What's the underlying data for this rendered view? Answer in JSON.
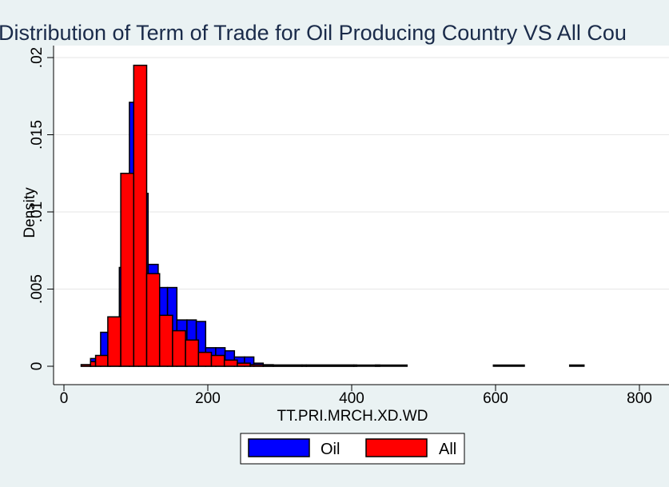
{
  "chart_data": {
    "type": "bar",
    "title": "Distribution of Term of Trade for Oil Producing Country VS All Cou",
    "xlabel": "TT.PRI.MRCH.XD.WD",
    "ylabel": "Density",
    "xlim": [
      0,
      800
    ],
    "ylim": [
      0,
      0.02
    ],
    "xticks": [
      0,
      200,
      400,
      600,
      800
    ],
    "yticks": [
      0,
      0.005,
      0.01,
      0.015,
      0.02
    ],
    "xtick_labels": [
      "0",
      "200",
      "400",
      "600",
      "800"
    ],
    "ytick_labels": [
      "0",
      ".005",
      ".01",
      ".015",
      ".02"
    ],
    "grid": true,
    "legend_position": "bottom",
    "series": [
      {
        "name": "Oil",
        "color": "#0000ff",
        "bins": [
          {
            "x0": 24,
            "x1": 37,
            "y": 0.0001
          },
          {
            "x0": 37,
            "x1": 51,
            "y": 0.0005
          },
          {
            "x0": 51,
            "x1": 64,
            "y": 0.0022
          },
          {
            "x0": 64,
            "x1": 77,
            "y": 0.0032
          },
          {
            "x0": 77,
            "x1": 91,
            "y": 0.0064
          },
          {
            "x0": 91,
            "x1": 104,
            "y": 0.0171
          },
          {
            "x0": 104,
            "x1": 117,
            "y": 0.0112
          },
          {
            "x0": 117,
            "x1": 131,
            "y": 0.0066
          },
          {
            "x0": 131,
            "x1": 144,
            "y": 0.0051
          },
          {
            "x0": 144,
            "x1": 157,
            "y": 0.0051
          },
          {
            "x0": 157,
            "x1": 171,
            "y": 0.003
          },
          {
            "x0": 171,
            "x1": 184,
            "y": 0.003
          },
          {
            "x0": 184,
            "x1": 197,
            "y": 0.0029
          },
          {
            "x0": 197,
            "x1": 211,
            "y": 0.0012
          },
          {
            "x0": 211,
            "x1": 224,
            "y": 0.0012
          },
          {
            "x0": 224,
            "x1": 237,
            "y": 0.001
          },
          {
            "x0": 237,
            "x1": 251,
            "y": 0.0006
          },
          {
            "x0": 251,
            "x1": 264,
            "y": 0.0006
          },
          {
            "x0": 264,
            "x1": 277,
            "y": 0.0002
          },
          {
            "x0": 277,
            "x1": 291,
            "y": 0.0001
          },
          {
            "x0": 291,
            "x1": 337,
            "y": 5e-05
          },
          {
            "x0": 337,
            "x1": 407,
            "y": 5e-05
          },
          {
            "x0": 433,
            "x1": 477,
            "y": 5e-05
          },
          {
            "x0": 597,
            "x1": 640,
            "y": 5e-05
          },
          {
            "x0": 703,
            "x1": 723,
            "y": 8e-05
          }
        ]
      },
      {
        "name": "All",
        "color": "#ff0000",
        "bins": [
          {
            "x0": 24,
            "x1": 37,
            "y": 0.0001
          },
          {
            "x0": 37,
            "x1": 44,
            "y": 0.0003
          },
          {
            "x0": 44,
            "x1": 61,
            "y": 0.0007
          },
          {
            "x0": 61,
            "x1": 79,
            "y": 0.0032
          },
          {
            "x0": 79,
            "x1": 97,
            "y": 0.0125
          },
          {
            "x0": 97,
            "x1": 115,
            "y": 0.0195
          },
          {
            "x0": 115,
            "x1": 133,
            "y": 0.006
          },
          {
            "x0": 133,
            "x1": 151,
            "y": 0.0033
          },
          {
            "x0": 151,
            "x1": 169,
            "y": 0.0023
          },
          {
            "x0": 169,
            "x1": 187,
            "y": 0.0017
          },
          {
            "x0": 187,
            "x1": 205,
            "y": 0.0009
          },
          {
            "x0": 205,
            "x1": 223,
            "y": 0.0007
          },
          {
            "x0": 223,
            "x1": 241,
            "y": 0.0004
          },
          {
            "x0": 241,
            "x1": 259,
            "y": 0.0002
          },
          {
            "x0": 259,
            "x1": 277,
            "y": 0.0001
          },
          {
            "x0": 277,
            "x1": 331,
            "y": 5e-05
          },
          {
            "x0": 331,
            "x1": 403,
            "y": 3e-05
          },
          {
            "x0": 403,
            "x1": 439,
            "y": 2e-05
          }
        ]
      }
    ]
  }
}
